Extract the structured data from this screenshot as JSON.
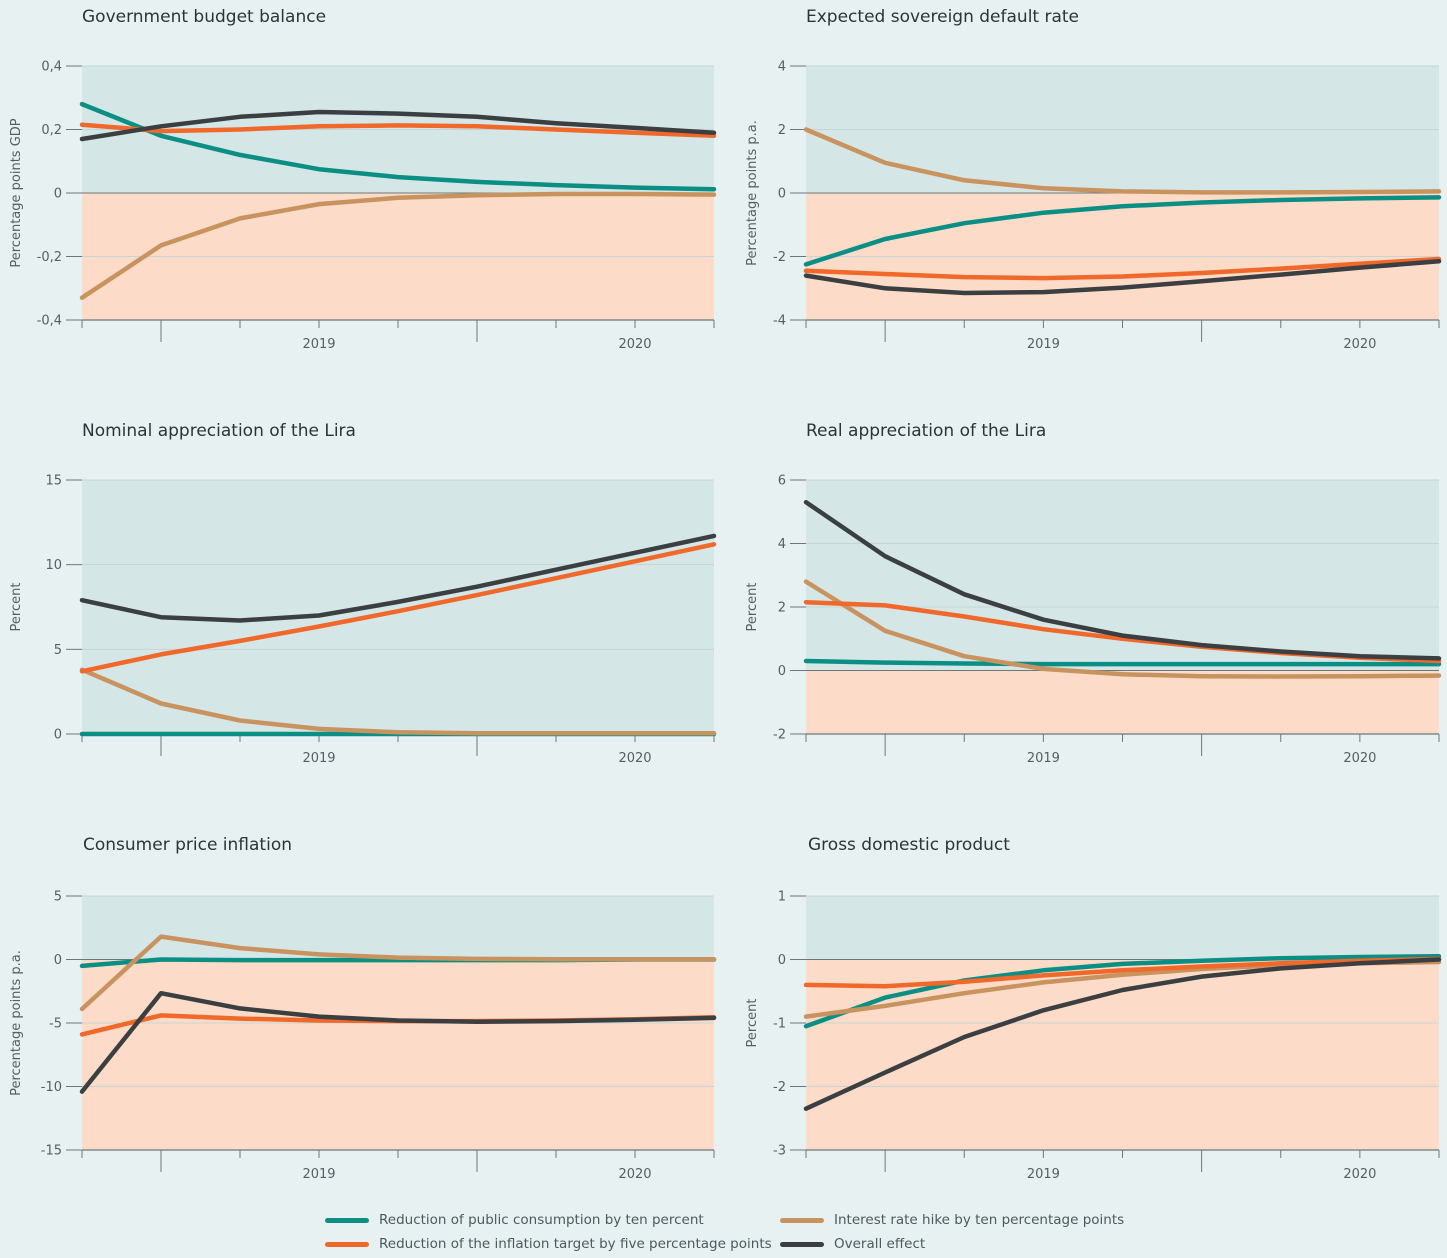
{
  "colors": {
    "positive_region": "#d4e7e6",
    "negative_region": "#fcdcc8",
    "grid": "#c7d4d4",
    "axis": "#6b777b",
    "text": "#555f63",
    "title": "#2b3438"
  },
  "legend": [
    {
      "name": "Reduction of public consumption by ten percent",
      "color": "#0b8f84"
    },
    {
      "name": "Interest rate hike by ten percentage points",
      "color": "#c9935f"
    },
    {
      "name": "Reduction of the inflation target by five percentage points",
      "color": "#f0682a"
    },
    {
      "name": "Overall effect",
      "color": "#3c3f42"
    }
  ],
  "chart_data": [
    {
      "type": "line",
      "title": "Government budget balance",
      "ylabel": "Percentage points GDP",
      "ylim": [
        -0.4,
        0.4
      ],
      "yticks": [
        -0.4,
        -0.2,
        0,
        0.2,
        0.4
      ],
      "ytick_labels": [
        "-0,4",
        "-0,2",
        "0",
        "0,2",
        "0,4"
      ],
      "x_tick_labels": [
        "2019",
        "2020"
      ],
      "series": [
        {
          "name": "Reduction of public consumption by ten percent",
          "values": [
            0.28,
            0.18,
            0.12,
            0.075,
            0.05,
            0.035,
            0.025,
            0.017,
            0.012
          ]
        },
        {
          "name": "Interest rate hike by ten percentage points",
          "values": [
            -0.33,
            -0.165,
            -0.08,
            -0.035,
            -0.015,
            -0.007,
            -0.003,
            -0.003,
            -0.005
          ]
        },
        {
          "name": "Reduction of the inflation target by five percentage points",
          "values": [
            0.215,
            0.195,
            0.2,
            0.21,
            0.213,
            0.21,
            0.2,
            0.19,
            0.18
          ]
        },
        {
          "name": "Overall effect",
          "values": [
            0.17,
            0.21,
            0.24,
            0.255,
            0.25,
            0.24,
            0.22,
            0.205,
            0.19
          ]
        }
      ]
    },
    {
      "type": "line",
      "title": "Expected sovereign default rate",
      "ylabel": "Percentage points p.a.",
      "ylim": [
        -4,
        4
      ],
      "yticks": [
        -4,
        -2,
        0,
        2,
        4
      ],
      "ytick_labels": [
        "-4",
        "-2",
        "0",
        "2",
        "4"
      ],
      "x_tick_labels": [
        "2019",
        "2020"
      ],
      "series": [
        {
          "name": "Reduction of public consumption by ten percent",
          "values": [
            -2.25,
            -1.45,
            -0.95,
            -0.62,
            -0.42,
            -0.3,
            -0.22,
            -0.17,
            -0.14
          ]
        },
        {
          "name": "Interest rate hike by ten percentage points",
          "values": [
            2.0,
            0.95,
            0.4,
            0.15,
            0.05,
            0.02,
            0.02,
            0.03,
            0.05
          ]
        },
        {
          "name": "Reduction of the inflation target by five percentage points",
          "values": [
            -2.45,
            -2.55,
            -2.65,
            -2.68,
            -2.63,
            -2.52,
            -2.38,
            -2.23,
            -2.08
          ]
        },
        {
          "name": "Overall effect",
          "values": [
            -2.6,
            -3.0,
            -3.15,
            -3.12,
            -2.98,
            -2.78,
            -2.57,
            -2.35,
            -2.15
          ]
        }
      ]
    },
    {
      "type": "line",
      "title": "Nominal appreciation of the Lira",
      "ylabel": "Percent",
      "ylim": [
        0,
        15
      ],
      "yticks": [
        0,
        5,
        10,
        15
      ],
      "ytick_labels": [
        "0",
        "5",
        "10",
        "15"
      ],
      "x_tick_labels": [
        "2019",
        "2020"
      ],
      "series": [
        {
          "name": "Reduction of public consumption by ten percent",
          "values": [
            0,
            0,
            0,
            0,
            0,
            0,
            0,
            0,
            0
          ]
        },
        {
          "name": "Interest rate hike by ten percentage points",
          "values": [
            3.8,
            1.8,
            0.8,
            0.3,
            0.1,
            0.05,
            0.05,
            0.05,
            0.05
          ]
        },
        {
          "name": "Reduction of the inflation target by five percentage points",
          "values": [
            3.7,
            4.7,
            5.5,
            6.35,
            7.25,
            8.2,
            9.2,
            10.2,
            11.2
          ]
        },
        {
          "name": "Overall effect",
          "values": [
            7.9,
            6.9,
            6.7,
            7.0,
            7.8,
            8.7,
            9.7,
            10.7,
            11.7
          ]
        }
      ]
    },
    {
      "type": "line",
      "title": "Real appreciation of the Lira",
      "ylabel": "Percent",
      "ylim": [
        -2,
        6
      ],
      "yticks": [
        -2,
        0,
        2,
        4,
        6
      ],
      "ytick_labels": [
        "-2",
        "0",
        "2",
        "4",
        "6"
      ],
      "x_tick_labels": [
        "2019",
        "2020"
      ],
      "series": [
        {
          "name": "Reduction of public consumption by ten percent",
          "values": [
            0.3,
            0.25,
            0.22,
            0.2,
            0.2,
            0.2,
            0.2,
            0.2,
            0.2
          ]
        },
        {
          "name": "Interest rate hike by ten percentage points",
          "values": [
            2.8,
            1.25,
            0.45,
            0.05,
            -0.12,
            -0.18,
            -0.19,
            -0.18,
            -0.16
          ]
        },
        {
          "name": "Reduction of the inflation target by five percentage points",
          "values": [
            2.15,
            2.05,
            1.7,
            1.3,
            1.0,
            0.75,
            0.55,
            0.4,
            0.3
          ]
        },
        {
          "name": "Overall effect",
          "values": [
            5.3,
            3.6,
            2.4,
            1.6,
            1.1,
            0.8,
            0.6,
            0.45,
            0.38
          ]
        }
      ]
    },
    {
      "type": "line",
      "title": "Consumer price inflation",
      "ylabel": "Percentage points p.a.",
      "ylim": [
        -15,
        5
      ],
      "yticks": [
        -15,
        -10,
        -5,
        0,
        5
      ],
      "ytick_labels": [
        "-15",
        "-10",
        "-5",
        "0",
        "5"
      ],
      "x_tick_labels": [
        "2019",
        "2020"
      ],
      "series": [
        {
          "name": "Reduction of public consumption by ten percent",
          "values": [
            -0.5,
            0,
            -0.05,
            -0.05,
            -0.05,
            -0.05,
            -0.05,
            0,
            0
          ]
        },
        {
          "name": "Interest rate hike by ten percentage points",
          "values": [
            -3.9,
            1.8,
            0.9,
            0.4,
            0.15,
            0.05,
            0.02,
            0.02,
            0.02
          ]
        },
        {
          "name": "Reduction of the inflation target by five percentage points",
          "values": [
            -5.9,
            -4.4,
            -4.65,
            -4.8,
            -4.85,
            -4.85,
            -4.8,
            -4.7,
            -4.55
          ]
        },
        {
          "name": "Overall effect",
          "values": [
            -10.4,
            -2.65,
            -3.85,
            -4.5,
            -4.8,
            -4.9,
            -4.85,
            -4.75,
            -4.6
          ]
        }
      ]
    },
    {
      "type": "line",
      "title": "Gross domestic product",
      "ylabel": "Percent",
      "ylim": [
        -3,
        1
      ],
      "yticks": [
        -3,
        -2,
        -1,
        0,
        1
      ],
      "ytick_labels": [
        "-3",
        "-2",
        "-1",
        "0",
        "1"
      ],
      "x_tick_labels": [
        "2019",
        "2020"
      ],
      "series": [
        {
          "name": "Reduction of public consumption by ten percent",
          "values": [
            -1.05,
            -0.6,
            -0.33,
            -0.17,
            -0.07,
            -0.02,
            0.02,
            0.04,
            0.05
          ]
        },
        {
          "name": "Interest rate hike by ten percentage points",
          "values": [
            -0.9,
            -0.73,
            -0.53,
            -0.36,
            -0.24,
            -0.15,
            -0.09,
            -0.06,
            -0.04
          ]
        },
        {
          "name": "Reduction of the inflation target by five percentage points",
          "values": [
            -0.4,
            -0.42,
            -0.35,
            -0.25,
            -0.17,
            -0.11,
            -0.06,
            -0.02,
            0.01
          ]
        },
        {
          "name": "Overall effect",
          "values": [
            -2.35,
            -1.78,
            -1.22,
            -0.8,
            -0.48,
            -0.27,
            -0.14,
            -0.06,
            0.0
          ]
        }
      ]
    }
  ]
}
